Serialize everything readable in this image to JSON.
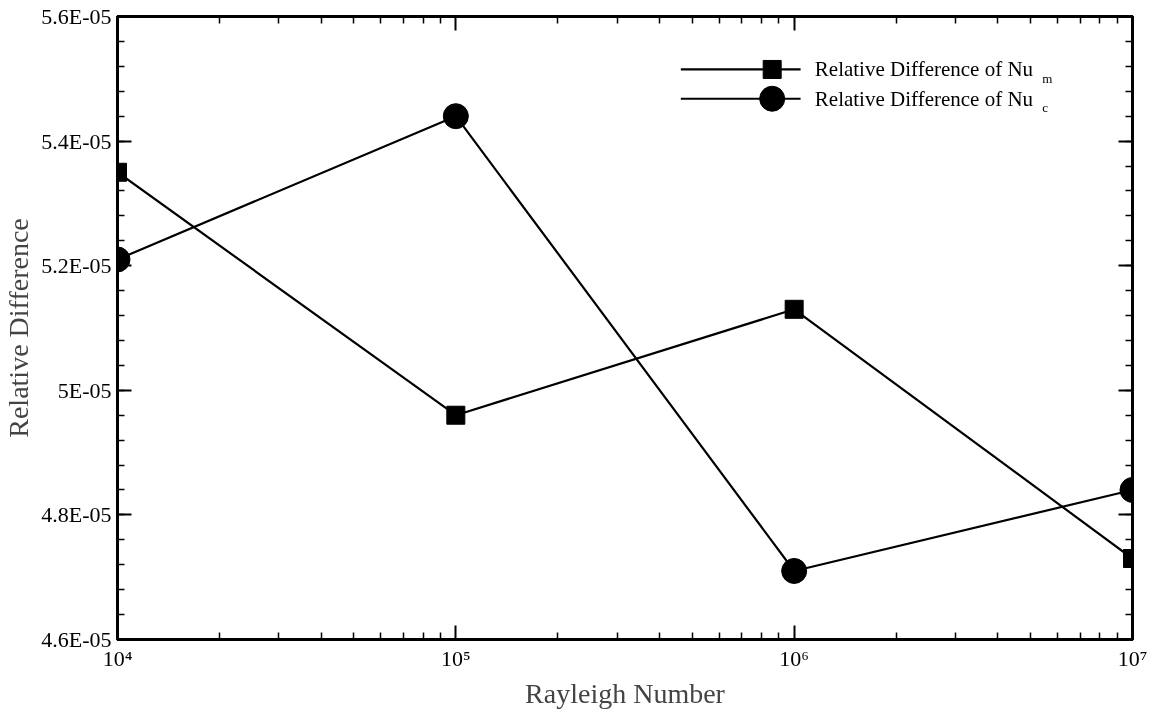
{
  "chart_data": {
    "type": "line",
    "xlabel": "Rayleigh Number",
    "ylabel": "Relative Difference",
    "x": [
      10000,
      100000,
      1000000,
      10000000
    ],
    "series": [
      {
        "name": "Relative Difference of Nu$_{m}$",
        "color": "#000000",
        "marker": "square",
        "values": [
          5.35e-05,
          4.96e-05,
          5.13e-05,
          4.73e-05
        ]
      },
      {
        "name": "Relative Difference of Nu$_{c}$",
        "color": "#000000",
        "marker": "circle",
        "values": [
          5.21e-05,
          5.44e-05,
          4.71e-05,
          4.84e-05
        ]
      }
    ],
    "log": "x",
    "xlim": [
      10000,
      10000000
    ],
    "xticks": [
      {
        "value": 10000,
        "label": "10⁴"
      },
      {
        "value": 100000,
        "label": "10⁵"
      },
      {
        "value": 1000000,
        "label": "10⁶"
      },
      {
        "value": 10000000,
        "label": "10⁷"
      }
    ],
    "ylim": [
      4.6e-05,
      5.6e-05
    ],
    "yticks": [
      {
        "value": 4.6e-05,
        "label": "4.6E-05"
      },
      {
        "value": 4.8e-05,
        "label": "4.8E-05"
      },
      {
        "value": 5e-05,
        "label": "5E-05"
      },
      {
        "value": 5.2e-05,
        "label": "5.2E-05"
      },
      {
        "value": 5.4e-05,
        "label": "5.4E-05"
      },
      {
        "value": 5.6e-05,
        "label": "5.6E-05"
      }
    ],
    "grid": false,
    "legend": "top right",
    "line_style": "solid"
  }
}
